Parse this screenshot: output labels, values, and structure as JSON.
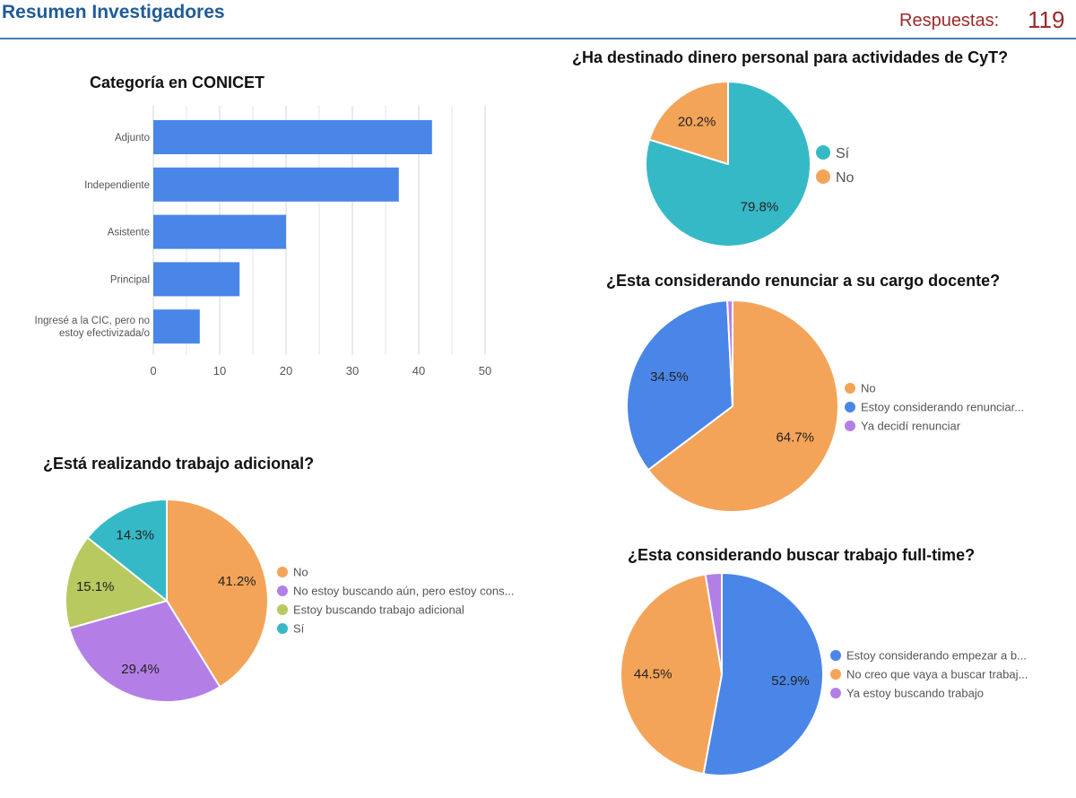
{
  "header": {
    "title": "Resumen Investigadores",
    "responses_label": "Respuestas:",
    "responses_count": "119"
  },
  "colors": {
    "blue": "#4a86e8",
    "orange": "#f4a458",
    "purple": "#b37fe6",
    "green": "#b7c95f",
    "teal": "#36b9c6",
    "header_blue": "#1f5b99",
    "header_red": "#9b2a2a"
  },
  "chart_data": [
    {
      "id": "conicet",
      "type": "bar",
      "orientation": "horizontal",
      "title": "Categoría en CONICET",
      "categories": [
        [
          "Adjunto"
        ],
        [
          "Independiente"
        ],
        [
          "Asistente"
        ],
        [
          "Principal"
        ],
        [
          "Ingresé a la CIC, pero no",
          "estoy efectivizada/o"
        ]
      ],
      "values": [
        42,
        37,
        20,
        13,
        7
      ],
      "xlim": [
        0,
        50
      ],
      "xticks": [
        0,
        10,
        20,
        30,
        40,
        50
      ],
      "xlabel": "",
      "ylabel": "",
      "grid": true
    },
    {
      "id": "dinero",
      "type": "pie",
      "title": "¿Ha destinado dinero personal para actividades de CyT?",
      "labels": [
        "Sí",
        "No"
      ],
      "values": [
        79.8,
        20.2
      ],
      "value_labels": [
        "79.8%",
        "20.2%"
      ],
      "colors": [
        "#36b9c6",
        "#f4a458"
      ],
      "legend": "right"
    },
    {
      "id": "renunciar",
      "type": "pie",
      "title": "¿Esta considerando renunciar a su cargo docente?",
      "labels": [
        "No",
        "Estoy considerando renunciar...",
        "Ya decidí renunciar"
      ],
      "values": [
        64.7,
        34.5,
        0.8
      ],
      "value_labels": [
        "64.7%",
        "34.5%",
        ""
      ],
      "colors": [
        "#f4a458",
        "#4a86e8",
        "#b37fe6"
      ],
      "legend": "right"
    },
    {
      "id": "adicional",
      "type": "pie",
      "title": "¿Está realizando trabajo adicional?",
      "labels": [
        "No",
        "No estoy buscando aún, pero estoy cons...",
        "Estoy buscando trabajo adicional",
        "Sí"
      ],
      "values": [
        41.2,
        29.4,
        15.1,
        14.3
      ],
      "value_labels": [
        "41.2%",
        "29.4%",
        "15.1%",
        "14.3%"
      ],
      "colors": [
        "#f4a458",
        "#b37fe6",
        "#b7c95f",
        "#36b9c6"
      ],
      "legend": "right"
    },
    {
      "id": "fulltime",
      "type": "pie",
      "title": "¿Esta considerando buscar trabajo full-time?",
      "labels": [
        "Estoy considerando empezar a b...",
        "No creo que vaya a buscar trabaj...",
        "Ya estoy buscando trabajo"
      ],
      "values": [
        52.9,
        44.5,
        2.6
      ],
      "value_labels": [
        "52.9%",
        "44.5%",
        ""
      ],
      "colors": [
        "#4a86e8",
        "#f4a458",
        "#b37fe6"
      ],
      "legend": "right"
    }
  ]
}
